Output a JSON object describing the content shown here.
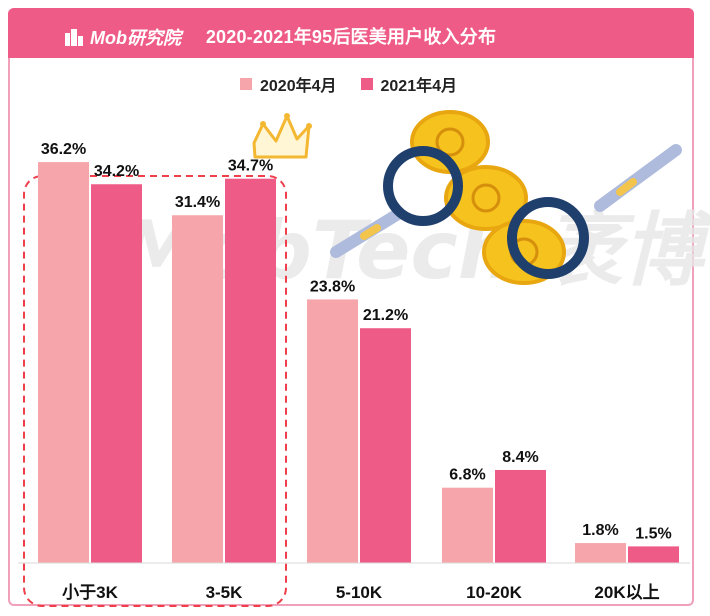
{
  "header": {
    "brand": "Mob研究院",
    "title": "2020-2021年95后医美用户收入分布"
  },
  "legend": [
    {
      "label": "2020年4月",
      "color": "#f6a6aa"
    },
    {
      "label": "2021年4月",
      "color": "#ef5b87"
    }
  ],
  "watermark": "MobTech 袤博",
  "chart_data": {
    "type": "bar",
    "title": "2020-2021年95后医美用户收入分布",
    "categories": [
      "小于3K",
      "3-5K",
      "5-10K",
      "10-20K",
      "20K以上"
    ],
    "series": [
      {
        "name": "2020年4月",
        "values": [
          36.2,
          31.4,
          23.8,
          6.8,
          1.8
        ],
        "color": "#f6a6aa"
      },
      {
        "name": "2021年4月",
        "values": [
          34.2,
          34.7,
          21.2,
          8.4,
          1.5
        ],
        "color": "#ef5b87"
      }
    ],
    "value_labels": [
      [
        "36.2%",
        "31.4%",
        "23.8%",
        "6.8%",
        "1.8%"
      ],
      [
        "34.2%",
        "34.7%",
        "21.2%",
        "8.4%",
        "1.5%"
      ]
    ],
    "ylim": [
      0,
      40
    ],
    "grid": false,
    "legend_position": "top"
  }
}
